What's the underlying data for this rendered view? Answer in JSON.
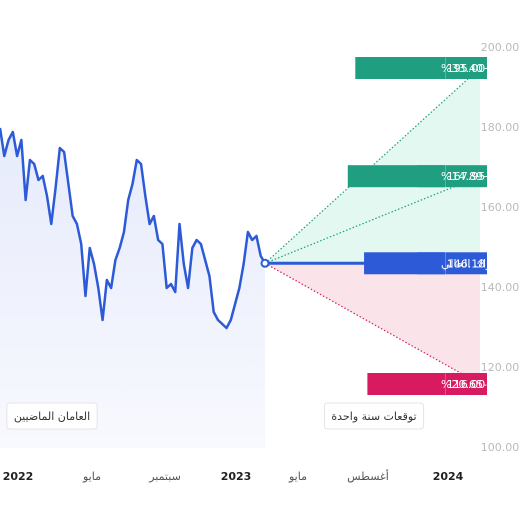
{
  "chart_data": {
    "type": "line",
    "history_label": "العامان الماضيين",
    "forecast_label": "توقعات سنة واحدة",
    "color": "#2d5bd8",
    "values": [
      180,
      173,
      177,
      179,
      173,
      177,
      162,
      172,
      171,
      167,
      168,
      163,
      156,
      165,
      175,
      174,
      166,
      158,
      156,
      151,
      138,
      150,
      146,
      140,
      132,
      142,
      140,
      147,
      150,
      154,
      162,
      166,
      172,
      171,
      163,
      156,
      158,
      152,
      151,
      140,
      141,
      139,
      156,
      146,
      140,
      150,
      152,
      151,
      147,
      143,
      134,
      132,
      131,
      130,
      132,
      136,
      140,
      146,
      154,
      152,
      153,
      148,
      146.18
    ],
    "x_labels": [
      "2022",
      "مايو",
      "سبتمبر",
      "2023",
      "مايو",
      "أغسطس",
      "2024"
    ],
    "targets": [
      {
        "label": "أقصى +33.40%",
        "value": 195,
        "value_label": "195.00",
        "color": "#1f9e80"
      },
      {
        "label": "متوسط +14.89%",
        "value": 167.95,
        "value_label": "167.95",
        "color": "#1f9e80"
      },
      {
        "label": "الاشتراك الحالي",
        "value": 146.18,
        "value_label": "146.18",
        "color": "#2d5bd8"
      },
      {
        "label": "أدنى -20.65%",
        "value": 116,
        "value_label": "116.00",
        "color": "#d81b60"
      }
    ],
    "ylim": [
      100,
      200
    ],
    "yticks": [
      {
        "value": 100,
        "label": "100.00"
      },
      {
        "value": 120,
        "label": "120.00"
      },
      {
        "value": 140,
        "label": "140.00"
      },
      {
        "value": 160,
        "label": "160.00"
      },
      {
        "value": 180,
        "label": "180.00"
      },
      {
        "value": 200,
        "label": "200.00"
      }
    ]
  }
}
